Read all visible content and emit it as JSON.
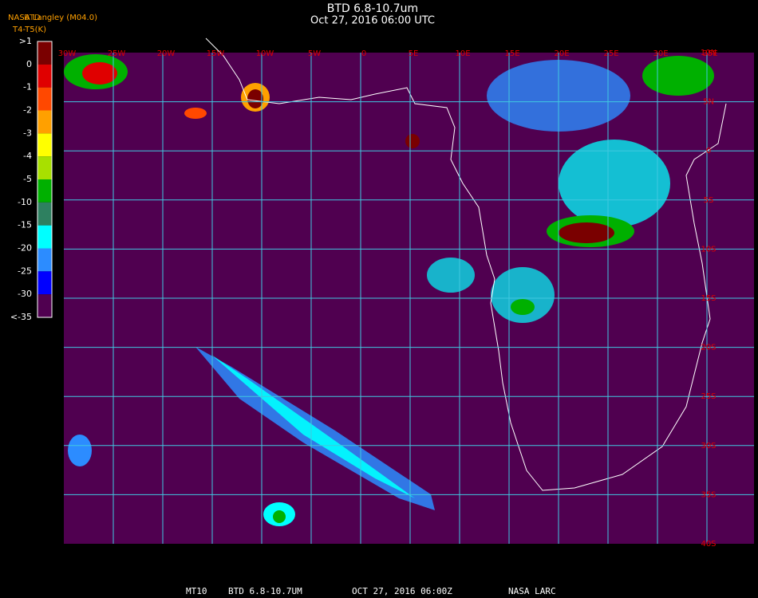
{
  "header": {
    "title": "BTD 6.8-10.7um",
    "subtitle": "Oct 27, 2016 06:00 UTC",
    "source": "NASA Langley (M04.0)",
    "product": "BTD",
    "units": "T4-T5(K)"
  },
  "legend": {
    "labels": [
      ">1",
      "0",
      "-1",
      "-2",
      "-3",
      "-4",
      "-5",
      "-10",
      "-15",
      "-20",
      "-25",
      "-30",
      "<-35"
    ],
    "colors": [
      "#7a0000",
      "#e00000",
      "#ff4800",
      "#ffa000",
      "#ffff00",
      "#a8e000",
      "#00b000",
      "#2e8060",
      "#00ffff",
      "#2c8cff",
      "#0000ff",
      "#500050"
    ]
  },
  "grid": {
    "longitude_labels": [
      "30W",
      "25W",
      "20W",
      "15W",
      "10W",
      "5W",
      "0",
      "5E",
      "10E",
      "15E",
      "20E",
      "25E",
      "30E",
      "35E"
    ],
    "latitude_labels": [
      "10N",
      "5N",
      "0",
      "5S",
      "10S",
      "15S",
      "20S",
      "25S",
      "30S",
      "35S",
      "40S"
    ]
  },
  "footer": {
    "satellite": "MT10",
    "product": "BTD 6.8-10.7UM",
    "time": "OCT 27, 2016 06:00Z",
    "source": "NASA LARC"
  }
}
